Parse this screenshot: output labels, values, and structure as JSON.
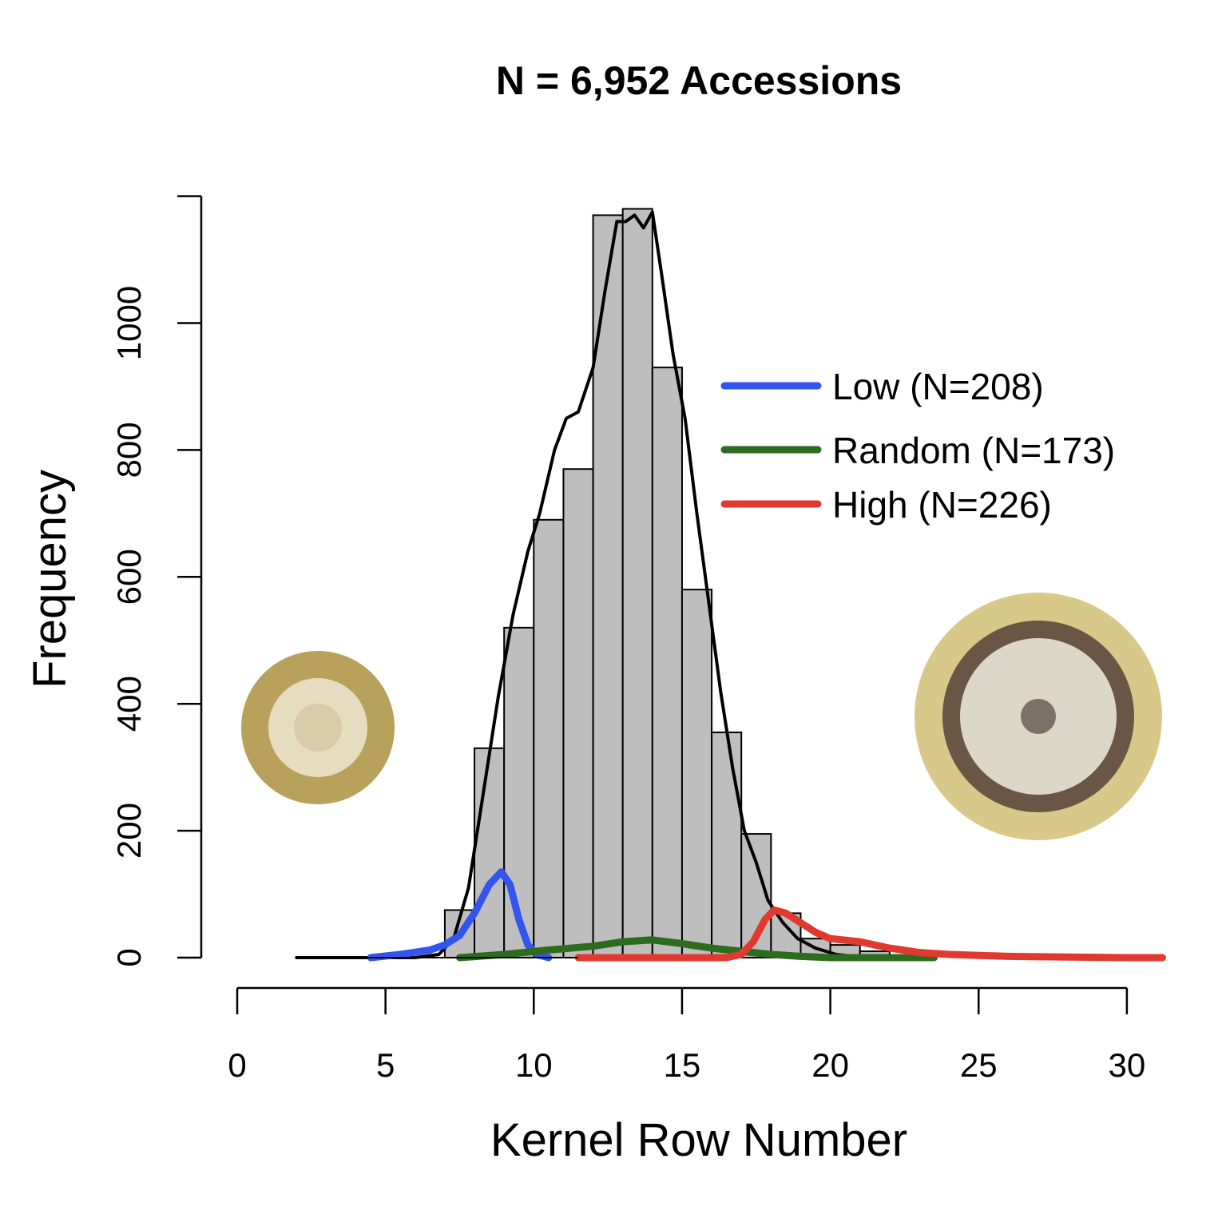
{
  "chart_data": {
    "type": "bar",
    "title": "N = 6,952 Accessions",
    "xlabel": "Kernel Row Number",
    "ylabel": "Frequency",
    "xlim": [
      0,
      30
    ],
    "ylim": [
      0,
      1200
    ],
    "x_ticks": [
      0,
      5,
      10,
      15,
      20,
      25,
      30
    ],
    "y_ticks": [
      0,
      200,
      400,
      600,
      800,
      1000
    ],
    "bin_width": 1,
    "histogram": {
      "bin_starts": [
        7,
        8,
        9,
        10,
        11,
        12,
        13,
        14,
        15,
        16,
        17,
        18,
        19,
        20,
        21
      ],
      "values": [
        75,
        330,
        520,
        690,
        770,
        1170,
        1180,
        930,
        580,
        355,
        195,
        70,
        30,
        20,
        10
      ]
    },
    "bar_color": "#bebebe",
    "legend_position": "right",
    "series": [
      {
        "name": "Low (N=208)",
        "color": "#3355ee",
        "x": [
          4.5,
          5.5,
          6.5,
          7.0,
          7.5,
          8.0,
          8.5,
          8.9,
          9.2,
          9.5,
          9.8,
          10.1,
          10.5
        ],
        "y": [
          0,
          5,
          12,
          20,
          35,
          70,
          115,
          135,
          115,
          60,
          20,
          5,
          0
        ]
      },
      {
        "name": "Random (N=173)",
        "color": "#2d6b1f",
        "x": [
          7.5,
          9,
          10.5,
          12,
          13,
          14,
          15,
          16,
          17,
          18,
          19,
          20,
          21.5,
          23.5
        ],
        "y": [
          0,
          5,
          12,
          18,
          25,
          28,
          22,
          15,
          10,
          5,
          2,
          0,
          0,
          0
        ]
      },
      {
        "name": "High (N=226)",
        "color": "#e0392f",
        "x": [
          11.5,
          13,
          15,
          16.5,
          17.0,
          17.4,
          17.8,
          18.1,
          18.5,
          19,
          19.5,
          20,
          21,
          22,
          23,
          24,
          26,
          28,
          30,
          31.2
        ],
        "y": [
          0,
          0,
          0,
          0,
          5,
          25,
          60,
          75,
          70,
          55,
          40,
          30,
          25,
          15,
          8,
          5,
          2,
          1,
          0,
          0
        ]
      },
      {
        "name": "density",
        "color": "#000000",
        "x": [
          2,
          4,
          6,
          6.8,
          7.3,
          7.8,
          8.3,
          8.8,
          9.3,
          9.8,
          10.2,
          10.7,
          11.1,
          11.5,
          12.0,
          12.4,
          12.8,
          13.1,
          13.4,
          13.7,
          14.0,
          14.3,
          14.7,
          15.1,
          15.5,
          15.9,
          16.3,
          16.7,
          17.1,
          17.5,
          17.9,
          18.4,
          18.9,
          19.5,
          20.2,
          21.2,
          22.0
        ],
        "y": [
          0,
          0,
          0,
          5,
          30,
          110,
          260,
          410,
          540,
          640,
          700,
          800,
          850,
          860,
          930,
          1050,
          1160,
          1160,
          1170,
          1150,
          1175,
          1080,
          950,
          850,
          700,
          560,
          420,
          300,
          200,
          150,
          90,
          55,
          30,
          15,
          5,
          0,
          0
        ]
      }
    ]
  }
}
